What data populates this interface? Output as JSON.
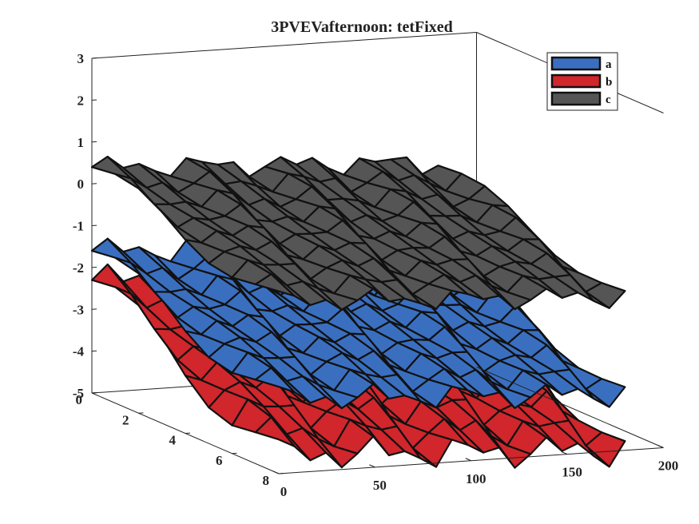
{
  "chart_data": {
    "type": "surface",
    "title": "3PVEVafternoon: tetFixed",
    "xlabel": "",
    "ylabel": "",
    "zlabel": "",
    "xlim": [
      0,
      200
    ],
    "ylim": [
      0,
      8
    ],
    "zlim": [
      -5,
      3
    ],
    "x_ticks": [
      "0",
      "50",
      "100",
      "150",
      "200"
    ],
    "y_ticks": [
      "0",
      "2",
      "4",
      "6",
      "8"
    ],
    "z_ticks": [
      "-5",
      "-4",
      "-3",
      "-2",
      "-1",
      "0",
      "1",
      "2",
      "3"
    ],
    "grid": false,
    "legend_position": "top-right",
    "series": [
      {
        "name": "a",
        "color": "#3a6fc0",
        "base": -1.6,
        "slope": -0.025,
        "amp": 0.35
      },
      {
        "name": "b",
        "color": "#d0262c",
        "base": -2.3,
        "slope": -0.035,
        "amp": 0.45
      },
      {
        "name": "c",
        "color": "#555555",
        "base": 0.4,
        "slope": -0.02,
        "amp": 0.3
      }
    ]
  }
}
